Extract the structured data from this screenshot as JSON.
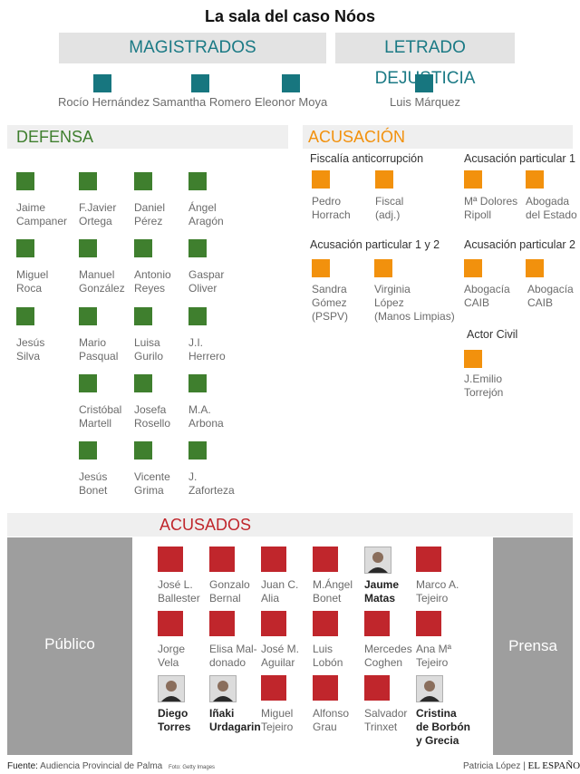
{
  "title": "La sala del caso Nóos",
  "colors": {
    "teal": "#17767f",
    "green": "#3f7f2e",
    "orange": "#f2910d",
    "red": "#c0262c"
  },
  "magistrados": {
    "label": "MAGISTRADOS",
    "names": [
      "Rocío Hernández",
      "Samantha Romero",
      "Eleonor Moya"
    ]
  },
  "letrado": {
    "label": "LETRADO DEJUSTICIA",
    "name": "Luis Márquez"
  },
  "defensa": {
    "label": "DEFENSA",
    "people": [
      "Jaime\nCampaner",
      "F.Javier\nOrtega",
      "Daniel\nPérez",
      "Ángel\nAragón",
      "Miguel\nRoca",
      "Manuel\nGonzález",
      "Antonio\nReyes",
      "Gaspar\nOliver",
      "Jesús\nSilva",
      "Mario\nPasqual",
      "Luisa\nGurilo",
      "J.I.\nHerrero",
      "Cristóbal\nMartell",
      "Josefa\nRosello",
      "M.A.\nArbona",
      "Jesús\nBonet",
      "Vicente\nGrima",
      "J.\nZaforteza"
    ]
  },
  "acusacion": {
    "label": "ACUSACIÓN",
    "groups": [
      {
        "title": "Fiscalía anticorrupción",
        "people": [
          "Pedro\nHorrach",
          "Fiscal\n(adj.)"
        ]
      },
      {
        "title": "Acusación particular 1",
        "people": [
          "Mª Dolores\nRipoll",
          "Abogada\ndel Estado"
        ]
      },
      {
        "title": "Acusación particular 1 y 2",
        "people": [
          "Sandra\nGómez\n(PSPV)",
          "Virginia\nLópez\n(Manos Limpias)"
        ]
      },
      {
        "title": "Acusación particular 2",
        "people": [
          "Abogacía\nCAIB",
          "Abogacía\nCAIB"
        ]
      },
      {
        "title": "Actor Civil",
        "people": [
          "J.Emilio\nTorrejón"
        ]
      }
    ]
  },
  "acusados": {
    "label": "ACUSADOS",
    "people": [
      {
        "name": "José L.\nBallester",
        "bold": false,
        "photo": false
      },
      {
        "name": "Gonzalo\nBernal",
        "bold": false,
        "photo": false
      },
      {
        "name": "Juan C.\nAlia",
        "bold": false,
        "photo": false
      },
      {
        "name": "M.Ángel\nBonet",
        "bold": false,
        "photo": false
      },
      {
        "name": "Jaume\nMatas",
        "bold": true,
        "photo": true
      },
      {
        "name": "Marco A.\nTejeiro",
        "bold": false,
        "photo": false
      },
      {
        "name": "Jorge\nVela",
        "bold": false,
        "photo": false
      },
      {
        "name": "Elisa Mal-\ndonado",
        "bold": false,
        "photo": false
      },
      {
        "name": "José M.\nAguilar",
        "bold": false,
        "photo": false
      },
      {
        "name": "Luis\nLobón",
        "bold": false,
        "photo": false
      },
      {
        "name": "Mercedes\nCoghen",
        "bold": false,
        "photo": false
      },
      {
        "name": "Ana Mª\nTejeiro",
        "bold": false,
        "photo": false
      },
      {
        "name": "Diego\nTorres",
        "bold": true,
        "photo": true
      },
      {
        "name": "Iñaki\nUrdagarin",
        "bold": true,
        "photo": true
      },
      {
        "name": "Miguel\nTejeiro",
        "bold": false,
        "photo": false
      },
      {
        "name": "Alfonso\nGrau",
        "bold": false,
        "photo": false
      },
      {
        "name": "Salvador\nTrinxet",
        "bold": false,
        "photo": false
      },
      {
        "name": "Cristina\nde Borbón\ny Grecia",
        "bold": true,
        "photo": true
      }
    ]
  },
  "publico": "Público",
  "prensa": "Prensa",
  "footer": {
    "fuente_label": "Fuente:",
    "fuente": "Audiencia Provincial de Palma",
    "foto": "Foto: Getty Images",
    "author": "Patricia López |",
    "brand": "EL ESPAÑOL"
  }
}
